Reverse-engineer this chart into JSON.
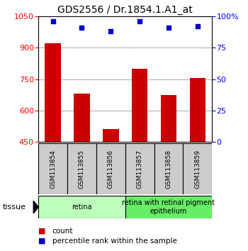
{
  "title": "GDS2556 / Dr.1854.1.A1_at",
  "samples": [
    "GSM113854",
    "GSM113855",
    "GSM113856",
    "GSM113857",
    "GSM113858",
    "GSM113859"
  ],
  "counts": [
    920,
    680,
    510,
    800,
    675,
    755
  ],
  "percentile_ranks": [
    96,
    91,
    88,
    96,
    91,
    92
  ],
  "ylim_left": [
    450,
    1050
  ],
  "ylim_right": [
    0,
    100
  ],
  "yticks_left": [
    450,
    600,
    750,
    900,
    1050
  ],
  "yticks_right": [
    0,
    25,
    50,
    75,
    100
  ],
  "ytick_labels_right": [
    "0",
    "25",
    "50",
    "75",
    "100%"
  ],
  "bar_color": "#cc0000",
  "scatter_color": "#0000cc",
  "tissue_groups": [
    {
      "label": "retina",
      "start": 0,
      "end": 3,
      "color": "#bbffbb"
    },
    {
      "label": "retina with retinal pigment\nepithelium",
      "start": 3,
      "end": 6,
      "color": "#66ee66"
    }
  ],
  "tissue_label": "tissue",
  "legend_items": [
    {
      "color": "#cc0000",
      "label": "count"
    },
    {
      "color": "#0000cc",
      "label": "percentile rank within the sample"
    }
  ],
  "bar_width": 0.55,
  "sample_box_color": "#cccccc",
  "plot_bg_color": "#ffffff",
  "title_fontsize": 10,
  "tick_fontsize": 8,
  "sample_fontsize": 6.5,
  "tissue_fontsize": 7,
  "legend_fontsize": 7.5
}
